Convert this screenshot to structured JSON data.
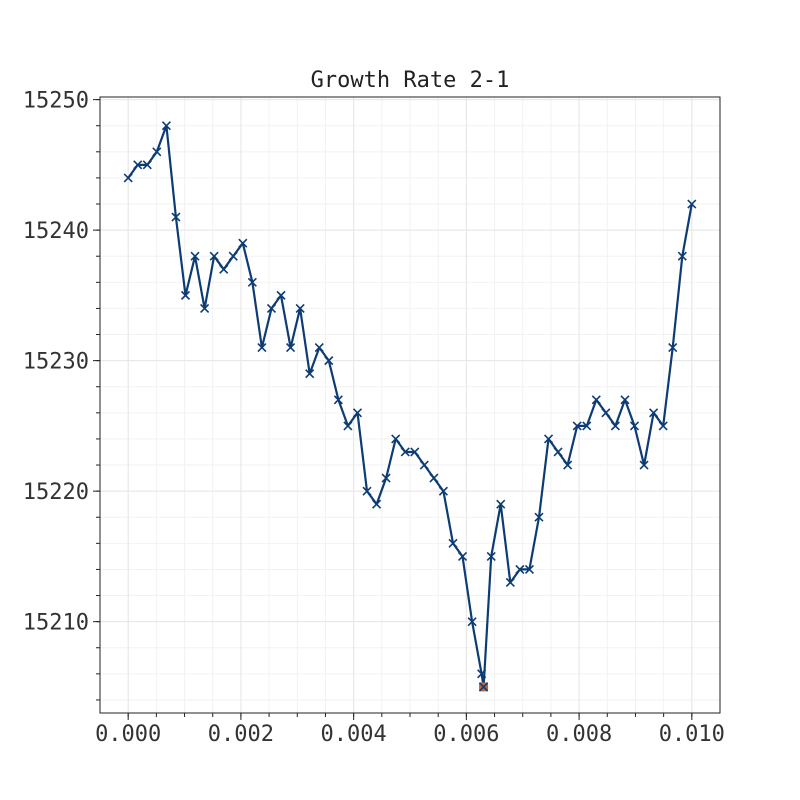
{
  "chart_data": {
    "type": "line",
    "title": "Growth Rate 2-1",
    "xlabel": "",
    "ylabel": "",
    "xlim": [
      -0.0005,
      0.0105
    ],
    "ylim": [
      15203,
      15250.2
    ],
    "x_ticks": [
      0.0,
      0.002,
      0.004,
      0.006,
      0.008,
      0.01
    ],
    "x_tick_labels": [
      "0.000",
      "0.002",
      "0.004",
      "0.006",
      "0.008",
      "0.010"
    ],
    "y_ticks": [
      15210,
      15220,
      15230,
      15240,
      15250
    ],
    "y_tick_labels": [
      "15210",
      "15220",
      "15230",
      "15240",
      "15250"
    ],
    "grid": true,
    "line_color": "#0d3c74",
    "highlight_color": "#c0643c",
    "marker": "x",
    "series": [
      {
        "x": [
          0.0,
          0.000169,
          0.000339,
          0.000508,
          0.000678,
          0.000847,
          0.001017,
          0.001186,
          0.001356,
          0.001525,
          0.001695,
          0.001864,
          0.002034,
          0.002203,
          0.002373,
          0.002542,
          0.002712,
          0.002881,
          0.003051,
          0.00322,
          0.00339,
          0.003559,
          0.003729,
          0.003898,
          0.004068,
          0.004237,
          0.004407,
          0.004576,
          0.004746,
          0.004915,
          0.005085,
          0.005254,
          0.005424,
          0.005593,
          0.005763,
          0.005932,
          0.006102,
          0.006271,
          0.006305,
          0.006441,
          0.00661,
          0.00678,
          0.006949,
          0.007119,
          0.007288,
          0.007458,
          0.007627,
          0.007797,
          0.007966,
          0.008136,
          0.008305,
          0.008475,
          0.008644,
          0.008814,
          0.008983,
          0.009153,
          0.009322,
          0.009492,
          0.009661,
          0.009831,
          0.01
        ],
        "y": [
          15244,
          15245,
          15245,
          15246,
          15248,
          15241,
          15235,
          15238,
          15234,
          15238,
          15237,
          15238,
          15239,
          15236,
          15231,
          15234,
          15235,
          15231,
          15234,
          15229,
          15231,
          15230,
          15227,
          15225,
          15226,
          15220,
          15219,
          15221,
          15224,
          15223,
          15223,
          15222,
          15221,
          15220,
          15216,
          15215,
          15210,
          15206,
          15205,
          15215,
          15219,
          15213,
          15214,
          15214,
          15218,
          15224,
          15223,
          15222,
          15225,
          15225,
          15227,
          15226,
          15225,
          15227,
          15225,
          15222,
          15226,
          15225,
          15231,
          15238,
          15242
        ]
      }
    ],
    "highlight_point": {
      "x": 0.006305,
      "y": 15205
    }
  }
}
